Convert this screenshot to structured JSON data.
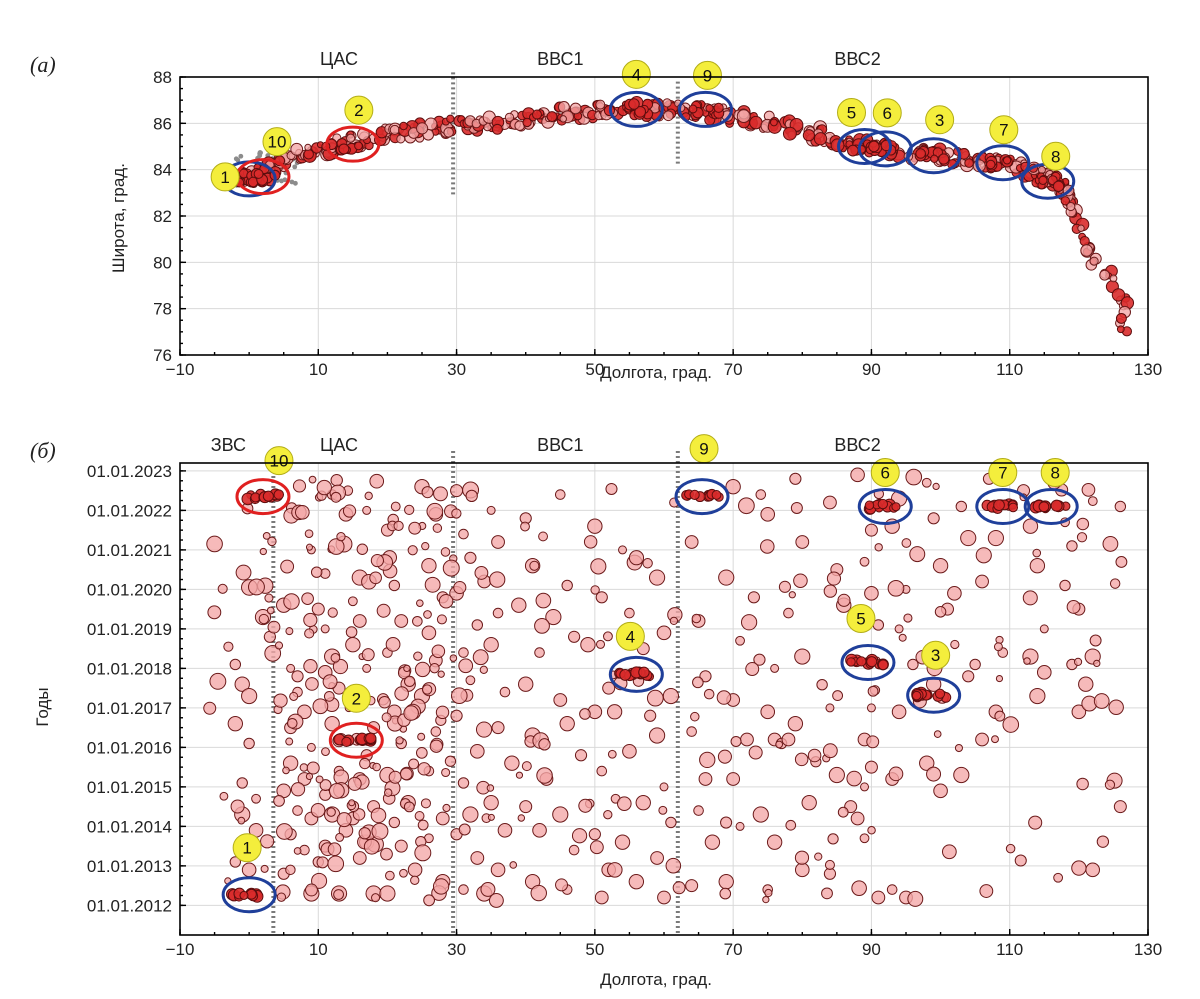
{
  "chart_data": [
    {
      "panel": "(a)",
      "type": "scatter",
      "xlabel": "Долгота, град.",
      "ylabel": "Широта, град.",
      "xlim": [
        -10,
        130
      ],
      "ylim": [
        76,
        88
      ],
      "xticks": [
        "−10",
        "10",
        "30",
        "50",
        "70",
        "90",
        "110",
        "130"
      ],
      "yticks": [
        "76",
        "78",
        "80",
        "82",
        "84",
        "86",
        "88"
      ],
      "grid": true,
      "region_labels": [
        {
          "text": "ЦАС",
          "x": 13
        },
        {
          "text": "ВВС1",
          "x": 45
        },
        {
          "text": "ВВС2",
          "x": 88
        }
      ],
      "dividers": [
        29.5,
        62
      ],
      "trend": [
        [
          -2,
          83.4
        ],
        [
          2,
          83.9
        ],
        [
          6,
          84.5
        ],
        [
          10,
          84.9
        ],
        [
          15,
          85.2
        ],
        [
          20,
          85.5
        ],
        [
          25,
          85.7
        ],
        [
          30,
          85.9
        ],
        [
          35,
          86.0
        ],
        [
          40,
          86.2
        ],
        [
          45,
          86.4
        ],
        [
          50,
          86.5
        ],
        [
          55,
          86.6
        ],
        [
          60,
          86.6
        ],
        [
          65,
          86.5
        ],
        [
          70,
          86.3
        ],
        [
          75,
          86.0
        ],
        [
          80,
          85.7
        ],
        [
          85,
          85.3
        ],
        [
          90,
          85.0
        ],
        [
          95,
          84.8
        ],
        [
          100,
          84.6
        ],
        [
          105,
          84.4
        ],
        [
          110,
          84.2
        ],
        [
          114,
          83.9
        ],
        [
          117,
          83.4
        ],
        [
          119,
          82.5
        ],
        [
          120,
          81.5
        ],
        [
          121,
          80.8
        ],
        [
          122,
          80.2
        ],
        [
          124,
          79.6
        ],
        [
          126,
          78.5
        ],
        [
          127,
          77.9
        ],
        [
          126,
          76.8
        ]
      ],
      "clusters": [
        {
          "label": "1",
          "x": 0,
          "y": 83.6,
          "ring": "blue"
        },
        {
          "label": "10",
          "x": 2,
          "y": 83.7,
          "ring": "red"
        },
        {
          "label": "2",
          "x": 15,
          "y": 85.1,
          "ring": "red"
        },
        {
          "label": "4",
          "x": 56,
          "y": 86.6,
          "ring": "blue"
        },
        {
          "label": "9",
          "x": 66,
          "y": 86.6,
          "ring": "blue"
        },
        {
          "label": "5",
          "x": 89,
          "y": 85.0,
          "ring": "blue"
        },
        {
          "label": "6",
          "x": 92,
          "y": 84.9,
          "ring": "blue"
        },
        {
          "label": "3",
          "x": 99,
          "y": 84.6,
          "ring": "blue"
        },
        {
          "label": "7",
          "x": 109,
          "y": 84.3,
          "ring": "blue"
        },
        {
          "label": "8",
          "x": 115.5,
          "y": 83.5,
          "ring": "blue"
        }
      ]
    },
    {
      "panel": "(б)",
      "type": "scatter",
      "xlabel": "Долгота, град.",
      "ylabel": "Годы",
      "xlim": [
        -10,
        130
      ],
      "ylim": [
        "01.01.2012",
        "01.01.2023"
      ],
      "xticks": [
        "−10",
        "10",
        "30",
        "50",
        "70",
        "90",
        "110",
        "130"
      ],
      "yticks": [
        "01.01.2012",
        "01.01.2013",
        "01.01.2014",
        "01.01.2015",
        "01.01.2016",
        "01.01.2017",
        "01.01.2018",
        "01.01.2019",
        "01.01.2020",
        "01.01.2021",
        "01.01.2022",
        "01.01.2023"
      ],
      "grid": true,
      "region_labels": [
        {
          "text": "ЗВС",
          "x": -3
        },
        {
          "text": "ЦАС",
          "x": 13
        },
        {
          "text": "ВВС1",
          "x": 45
        },
        {
          "text": "ВВС2",
          "x": 88
        }
      ],
      "dividers": [
        3.5,
        29.5,
        62
      ],
      "clusters": [
        {
          "label": "1",
          "x": 0,
          "y": 2012.27,
          "ring": "blue"
        },
        {
          "label": "10",
          "x": 2,
          "y": 2022.35,
          "ring": "red"
        },
        {
          "label": "2",
          "x": 15.5,
          "y": 2016.18,
          "ring": "red"
        },
        {
          "label": "4",
          "x": 56,
          "y": 2017.85,
          "ring": "blue"
        },
        {
          "label": "9",
          "x": 65.5,
          "y": 2022.35,
          "ring": "blue"
        },
        {
          "label": "6",
          "x": 92,
          "y": 2022.1,
          "ring": "blue"
        },
        {
          "label": "7",
          "x": 109,
          "y": 2022.1,
          "ring": "blue"
        },
        {
          "label": "8",
          "x": 116,
          "y": 2022.1,
          "ring": "blue"
        },
        {
          "label": "5",
          "x": 89.5,
          "y": 2018.15,
          "ring": "blue"
        },
        {
          "label": "3",
          "x": 99,
          "y": 2017.32,
          "ring": "blue"
        }
      ],
      "events": [
        [
          -5,
          2021.15
        ],
        [
          -3,
          2018.55
        ],
        [
          -2,
          2018.1
        ],
        [
          -1,
          2017.6
        ],
        [
          0,
          2017.3
        ],
        [
          -2,
          2016.6
        ],
        [
          0,
          2016.1
        ],
        [
          -1,
          2015.1
        ],
        [
          1,
          2014.7
        ],
        [
          -1,
          2014.3
        ],
        [
          1,
          2013.9
        ],
        [
          0,
          2013.5
        ],
        [
          -2,
          2013.1
        ],
        [
          0,
          2012.9
        ],
        [
          2,
          2019.3
        ],
        [
          3,
          2018.8
        ],
        [
          5,
          2019.6
        ],
        [
          6,
          2018.0
        ],
        [
          7,
          2017.8
        ],
        [
          7,
          2017.4
        ],
        [
          8,
          2016.9
        ],
        [
          6,
          2016.5
        ],
        [
          9,
          2016.0
        ],
        [
          6,
          2015.6
        ],
        [
          8,
          2015.2
        ],
        [
          5,
          2014.9
        ],
        [
          7,
          2014.4
        ],
        [
          9,
          2014.2
        ],
        [
          6,
          2013.8
        ],
        [
          8,
          2013.4
        ],
        [
          10,
          2013.1
        ],
        [
          5,
          2012.8
        ],
        [
          9,
          2012.3
        ],
        [
          10,
          2019.5
        ],
        [
          11,
          2019.0
        ],
        [
          12,
          2018.3
        ],
        [
          11,
          2017.9
        ],
        [
          13,
          2017.5
        ],
        [
          12,
          2016.6
        ],
        [
          13,
          2015.4
        ],
        [
          11,
          2014.8
        ],
        [
          12,
          2014.3
        ],
        [
          14,
          2013.9
        ],
        [
          11,
          2013.5
        ],
        [
          13,
          2012.3
        ],
        [
          14,
          2021.9
        ],
        [
          12,
          2022.4
        ],
        [
          9,
          2021.0
        ],
        [
          11,
          2020.4
        ],
        [
          15,
          2019.7
        ],
        [
          16,
          2019.2
        ],
        [
          15,
          2018.6
        ],
        [
          17,
          2018.0
        ],
        [
          16,
          2017.2
        ],
        [
          18,
          2016.5
        ],
        [
          17,
          2015.8
        ],
        [
          16,
          2015.2
        ],
        [
          18,
          2014.5
        ],
        [
          15,
          2014.2
        ],
        [
          17,
          2013.6
        ],
        [
          16,
          2013.2
        ],
        [
          18,
          2012.3
        ],
        [
          17,
          2022.0
        ],
        [
          16,
          2020.3
        ],
        [
          20,
          2021.5
        ],
        [
          21,
          2020.1
        ],
        [
          22,
          2019.2
        ],
        [
          20,
          2018.4
        ],
        [
          23,
          2017.6
        ],
        [
          21,
          2016.9
        ],
        [
          22,
          2016.1
        ],
        [
          20,
          2015.3
        ],
        [
          23,
          2014.6
        ],
        [
          21,
          2014.1
        ],
        [
          22,
          2013.5
        ],
        [
          24,
          2012.9
        ],
        [
          20,
          2012.3
        ],
        [
          25,
          2022.6
        ],
        [
          27,
          2021.9
        ],
        [
          26,
          2020.6
        ],
        [
          28,
          2019.8
        ],
        [
          26,
          2018.9
        ],
        [
          27,
          2018.2
        ],
        [
          25,
          2017.3
        ],
        [
          27,
          2016.4
        ],
        [
          26,
          2015.4
        ],
        [
          28,
          2014.2
        ],
        [
          26,
          2013.7
        ],
        [
          28,
          2012.6
        ],
        [
          30,
          2022.5
        ],
        [
          31,
          2021.4
        ],
        [
          32,
          2020.8
        ],
        [
          30,
          2019.9
        ],
        [
          33,
          2019.1
        ],
        [
          31,
          2018.4
        ],
        [
          32,
          2017.7
        ],
        [
          30,
          2016.8
        ],
        [
          33,
          2015.9
        ],
        [
          31,
          2015.1
        ],
        [
          32,
          2014.3
        ],
        [
          30,
          2013.8
        ],
        [
          33,
          2013.2
        ],
        [
          31,
          2012.4
        ],
        [
          35,
          2022.0
        ],
        [
          36,
          2021.2
        ],
        [
          34,
          2020.2
        ],
        [
          36,
          2019.4
        ],
        [
          35,
          2018.6
        ],
        [
          37,
          2017.4
        ],
        [
          36,
          2016.5
        ],
        [
          38,
          2015.6
        ],
        [
          35,
          2014.6
        ],
        [
          37,
          2013.9
        ],
        [
          36,
          2012.9
        ],
        [
          34,
          2012.3
        ],
        [
          40,
          2021.8
        ],
        [
          41,
          2020.6
        ],
        [
          39,
          2019.6
        ],
        [
          42,
          2018.4
        ],
        [
          40,
          2017.6
        ],
        [
          41,
          2016.3
        ],
        [
          43,
          2015.2
        ],
        [
          40,
          2014.5
        ],
        [
          42,
          2013.9
        ],
        [
          41,
          2012.6
        ],
        [
          45,
          2022.4
        ],
        [
          46,
          2020.1
        ],
        [
          44,
          2019.3
        ],
        [
          47,
          2018.8
        ],
        [
          45,
          2017.2
        ],
        [
          46,
          2016.6
        ],
        [
          48,
          2015.8
        ],
        [
          45,
          2014.3
        ],
        [
          47,
          2013.4
        ],
        [
          46,
          2012.4
        ],
        [
          50,
          2021.6
        ],
        [
          51,
          2019.8
        ],
        [
          49,
          2018.6
        ],
        [
          52,
          2017.5
        ],
        [
          50,
          2016.9
        ],
        [
          51,
          2015.4
        ],
        [
          53,
          2014.7
        ],
        [
          50,
          2013.8
        ],
        [
          52,
          2012.9
        ],
        [
          51,
          2012.2
        ],
        [
          54,
          2021.0
        ],
        [
          55,
          2019.4
        ],
        [
          57,
          2018.5
        ],
        [
          58,
          2016.8
        ],
        [
          55,
          2015.9
        ],
        [
          57,
          2014.6
        ],
        [
          54,
          2013.6
        ],
        [
          56,
          2012.6
        ],
        [
          59,
          2020.3
        ],
        [
          60,
          2018.9
        ],
        [
          61,
          2017.3
        ],
        [
          59,
          2016.3
        ],
        [
          60,
          2015.0
        ],
        [
          61,
          2014.1
        ],
        [
          59,
          2013.2
        ],
        [
          60,
          2012.2
        ],
        [
          64,
          2021.2
        ],
        [
          65,
          2019.2
        ],
        [
          66,
          2017.8
        ],
        [
          64,
          2016.4
        ],
        [
          66,
          2015.2
        ],
        [
          65,
          2014.4
        ],
        [
          67,
          2013.6
        ],
        [
          64,
          2012.5
        ],
        [
          70,
          2022.6
        ],
        [
          69,
          2020.3
        ],
        [
          71,
          2018.7
        ],
        [
          70,
          2017.2
        ],
        [
          72,
          2016.2
        ],
        [
          70,
          2015.2
        ],
        [
          71,
          2014.0
        ],
        [
          69,
          2012.6
        ],
        [
          74,
          2022.4
        ],
        [
          75,
          2021.9
        ],
        [
          73,
          2019.8
        ],
        [
          76,
          2018.0
        ],
        [
          75,
          2016.9
        ],
        [
          76,
          2016.2
        ],
        [
          77,
          2016.1
        ],
        [
          78,
          2016.2
        ],
        [
          74,
          2014.3
        ],
        [
          76,
          2013.6
        ],
        [
          75,
          2012.4
        ],
        [
          79,
          2022.8
        ],
        [
          80,
          2021.2
        ],
        [
          78,
          2019.4
        ],
        [
          80,
          2018.3
        ],
        [
          79,
          2016.6
        ],
        [
          81,
          2014.6
        ],
        [
          80,
          2012.9
        ],
        [
          84,
          2022.2
        ],
        [
          85,
          2020.5
        ],
        [
          86,
          2019.6
        ],
        [
          84,
          2017.0
        ],
        [
          85,
          2015.3
        ],
        [
          84,
          2012.8
        ],
        [
          87,
          2014.5
        ],
        [
          88,
          2014.2
        ],
        [
          89,
          2013.7
        ],
        [
          88,
          2022.9
        ],
        [
          90,
          2021.5
        ],
        [
          89,
          2020.7
        ],
        [
          90,
          2019.9
        ],
        [
          91,
          2019.1
        ],
        [
          90,
          2017.0
        ],
        [
          89,
          2016.2
        ],
        [
          90,
          2015.5
        ],
        [
          89,
          2015.0
        ],
        [
          91,
          2012.2
        ],
        [
          93,
          2012.4
        ],
        [
          95,
          2012.2
        ],
        [
          94,
          2022.3
        ],
        [
          93,
          2021.6
        ],
        [
          95,
          2020.0
        ],
        [
          94,
          2019.0
        ],
        [
          96,
          2018.1
        ],
        [
          94,
          2016.9
        ],
        [
          93,
          2015.2
        ],
        [
          98,
          2022.7
        ],
        [
          99,
          2021.8
        ],
        [
          100,
          2020.6
        ],
        [
          101,
          2019.5
        ],
        [
          99,
          2017.6
        ],
        [
          98,
          2015.6
        ],
        [
          100,
          2014.9
        ],
        [
          103,
          2022.1
        ],
        [
          104,
          2021.3
        ],
        [
          102,
          2019.9
        ],
        [
          105,
          2018.1
        ],
        [
          104,
          2017.8
        ],
        [
          106,
          2016.2
        ],
        [
          103,
          2015.3
        ],
        [
          107,
          2022.8
        ],
        [
          108,
          2021.3
        ],
        [
          106,
          2020.2
        ],
        [
          109,
          2018.4
        ],
        [
          108,
          2016.9
        ],
        [
          112,
          2022.5
        ],
        [
          113,
          2021.6
        ],
        [
          114,
          2020.6
        ],
        [
          115,
          2019.0
        ],
        [
          113,
          2018.3
        ],
        [
          115,
          2017.9
        ],
        [
          114,
          2017.3
        ],
        [
          117,
          2022.7
        ],
        [
          118,
          2021.7
        ],
        [
          119,
          2021.1
        ],
        [
          118,
          2020.1
        ],
        [
          120,
          2019.5
        ],
        [
          119,
          2018.1
        ],
        [
          121,
          2017.6
        ],
        [
          122,
          2018.3
        ],
        [
          120,
          2016.9
        ],
        [
          126,
          2014.5
        ],
        [
          122,
          2012.9
        ],
        [
          117,
          2012.7
        ],
        [
          126,
          2022.1
        ]
      ]
    }
  ]
}
